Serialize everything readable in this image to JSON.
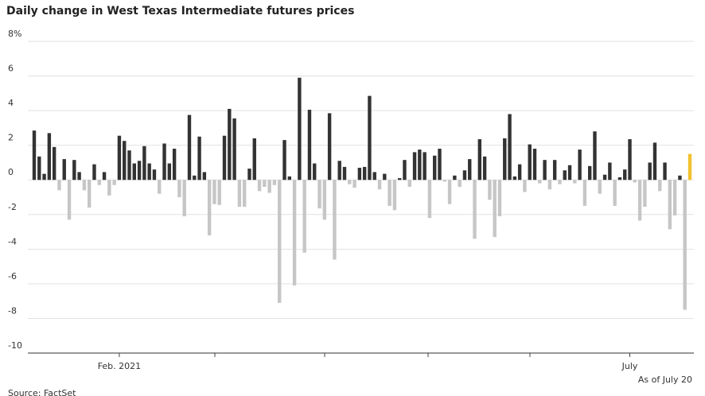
{
  "chart_data": {
    "type": "bar",
    "title": "Daily change in West Texas Intermediate futures prices",
    "annotation": "As of July 20",
    "source": "Source: FactSet",
    "categories": [
      null,
      null,
      null,
      null,
      null,
      null,
      null,
      null,
      null,
      null,
      null,
      null,
      null,
      null,
      null,
      null,
      null,
      "Feb. 2021",
      null,
      null,
      null,
      null,
      null,
      null,
      null,
      null,
      null,
      null,
      null,
      null,
      null,
      null,
      null,
      null,
      null,
      null,
      null,
      null,
      null,
      null,
      null,
      null,
      null,
      null,
      null,
      null,
      null,
      null,
      null,
      null,
      null,
      null,
      null,
      null,
      null,
      null,
      null,
      null,
      null,
      null,
      null,
      null,
      null,
      null,
      null,
      null,
      null,
      null,
      null,
      null,
      null,
      null,
      null,
      null,
      null,
      null,
      null,
      null,
      null,
      null,
      null,
      null,
      null,
      null,
      null,
      null,
      null,
      null,
      null,
      null,
      null,
      null,
      null,
      null,
      null,
      null,
      null,
      null,
      null,
      null,
      null,
      null,
      null,
      null,
      null,
      null,
      null,
      null,
      null,
      null,
      null,
      null,
      null,
      null,
      null,
      null,
      null,
      null,
      null,
      "July",
      null,
      null,
      null,
      null,
      null,
      null,
      null,
      null,
      null,
      null,
      null,
      null
    ],
    "values": [
      2.85,
      1.35,
      0.35,
      2.7,
      1.9,
      -0.6,
      1.2,
      -2.3,
      1.15,
      0.45,
      -0.6,
      -1.6,
      0.9,
      -0.3,
      0.45,
      -0.9,
      -0.3,
      2.55,
      2.25,
      1.7,
      0.95,
      1.1,
      1.95,
      0.95,
      0.6,
      -0.8,
      2.1,
      0.95,
      1.8,
      -1.0,
      -2.1,
      3.75,
      0.25,
      2.5,
      0.45,
      -3.2,
      -1.4,
      -1.45,
      2.55,
      4.1,
      3.55,
      -1.55,
      -1.55,
      0.65,
      2.4,
      -0.65,
      -0.4,
      -0.75,
      -0.3,
      -7.1,
      2.3,
      0.2,
      -6.1,
      5.9,
      -4.2,
      4.05,
      0.95,
      -1.65,
      -2.3,
      3.85,
      -4.6,
      1.1,
      0.75,
      -0.25,
      -0.45,
      0.7,
      0.75,
      4.85,
      0.45,
      -0.55,
      0.35,
      -1.5,
      -1.75,
      0.1,
      1.15,
      -0.4,
      1.6,
      1.75,
      1.6,
      -2.2,
      1.4,
      1.8,
      -0.1,
      -1.4,
      0.25,
      -0.4,
      0.55,
      1.2,
      -3.4,
      2.35,
      1.35,
      -1.15,
      -3.3,
      -2.1,
      2.4,
      3.8,
      0.2,
      0.9,
      -0.7,
      2.05,
      1.8,
      -0.2,
      1.15,
      -0.55,
      1.15,
      -0.25,
      0.55,
      0.85,
      -0.2,
      1.75,
      -1.5,
      0.8,
      2.8,
      -0.8,
      0.3,
      1.0,
      -1.5,
      0.15,
      0.6,
      2.35,
      -0.15,
      -2.35,
      -1.55,
      1.0,
      2.15,
      -0.65,
      1.0,
      -2.85,
      -2.05,
      0.25,
      -7.5,
      1.5
    ],
    "color_up": "#333333",
    "color_down": "#c6c6c6",
    "highlight_last_color": "#f2c12e",
    "ylim": [
      -10,
      8
    ],
    "yticks": [
      {
        "value": 8,
        "label": "8%"
      },
      6,
      4,
      2,
      0,
      -2,
      -4,
      -6,
      -8,
      -10
    ],
    "grid": true
  }
}
